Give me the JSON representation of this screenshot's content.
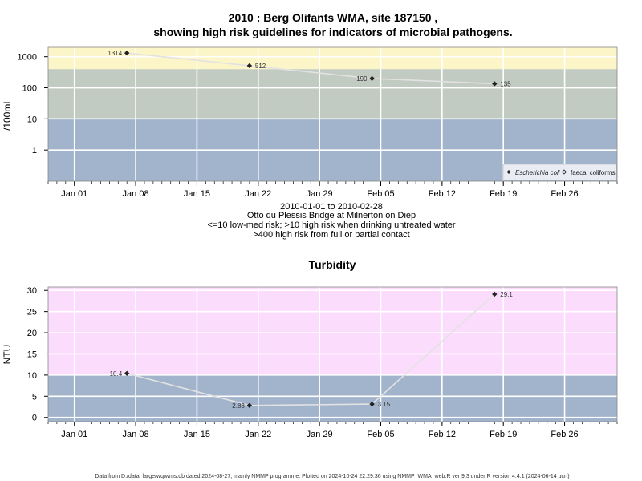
{
  "chart_data": [
    {
      "type": "line",
      "title_line1": "2010 : Berg Olifants WMA, site 187150 ,",
      "title_line2": "showing high risk guidelines for indicators of microbial pathogens.",
      "ylabel": "/100mL",
      "yscale": "log",
      "ylim": [
        0.1,
        2000
      ],
      "yticks": [
        1,
        10,
        100,
        1000
      ],
      "ytick_labels": [
        "1",
        "10",
        "100",
        "1000"
      ],
      "xlim": [
        "2009-12-29",
        "2010-03-04"
      ],
      "xticks": [
        "2010-01-01",
        "2010-01-08",
        "2010-01-15",
        "2010-01-22",
        "2010-01-29",
        "2010-02-05",
        "2010-02-12",
        "2010-02-19",
        "2010-02-26"
      ],
      "xtick_labels": [
        "Jan 01",
        "Jan 08",
        "Jan 15",
        "Jan 22",
        "Jan 29",
        "Feb 05",
        "Feb 12",
        "Feb 19",
        "Feb 26"
      ],
      "bands": [
        {
          "from": 0.1,
          "to": 10,
          "color": "#a2b3cc"
        },
        {
          "from": 10,
          "to": 400,
          "color": "#c2cbc1"
        },
        {
          "from": 400,
          "to": 2000,
          "color": "#fcf5c8"
        }
      ],
      "series": [
        {
          "name": "Escherichia coli",
          "marker": "filled-diamond",
          "points": [
            {
              "x": "2010-01-07",
              "y": 1314,
              "label": "1314",
              "label_side": "left"
            },
            {
              "x": "2010-01-21",
              "y": 512,
              "label": "512",
              "label_side": "right"
            },
            {
              "x": "2010-02-04",
              "y": 199,
              "label": "199",
              "label_side": "left"
            },
            {
              "x": "2010-02-18",
              "y": 135,
              "label": "135",
              "label_side": "right"
            }
          ]
        }
      ],
      "legend": {
        "position": "bottom-right",
        "entries": [
          {
            "label": "Escherichia coli",
            "marker": "filled-diamond",
            "italic": true
          },
          {
            "label": "faecal coliforms",
            "marker": "open-diamond",
            "italic": false
          }
        ]
      },
      "info_lines": [
        "2010-01-01 to 2010-02-28",
        "Otto du Plessis Bridge at Milnerton on Diep",
        "<=10 low-med risk; >10 high risk when drinking untreated water",
        ">400 high risk from full or partial contact"
      ]
    },
    {
      "type": "line",
      "title": "Turbidity",
      "ylabel": "NTU",
      "yscale": "linear",
      "ylim": [
        -1,
        30.8
      ],
      "yticks": [
        0,
        5,
        10,
        15,
        20,
        25,
        30
      ],
      "ytick_labels": [
        "0",
        "5",
        "10",
        "15",
        "20",
        "25",
        "30"
      ],
      "xlim": [
        "2009-12-29",
        "2010-03-04"
      ],
      "xticks": [
        "2010-01-01",
        "2010-01-08",
        "2010-01-15",
        "2010-01-22",
        "2010-01-29",
        "2010-02-05",
        "2010-02-12",
        "2010-02-19",
        "2010-02-26"
      ],
      "xtick_labels": [
        "Jan 01",
        "Jan 08",
        "Jan 15",
        "Jan 22",
        "Jan 29",
        "Feb 05",
        "Feb 12",
        "Feb 19",
        "Feb 26"
      ],
      "bands": [
        {
          "from": -1,
          "to": 10,
          "color": "#a2b3cc"
        },
        {
          "from": 10,
          "to": 30.8,
          "color": "#fcdcfc"
        }
      ],
      "series": [
        {
          "name": "",
          "marker": "filled-diamond",
          "points": [
            {
              "x": "2010-01-07",
              "y": 10.4,
              "label": "10.4",
              "label_side": "left"
            },
            {
              "x": "2010-01-21",
              "y": 2.83,
              "label": "2.83",
              "label_side": "left"
            },
            {
              "x": "2010-02-04",
              "y": 3.15,
              "label": "3.15",
              "label_side": "right"
            },
            {
              "x": "2010-02-18",
              "y": 29.1,
              "label": "29.1",
              "label_side": "right"
            }
          ]
        }
      ]
    }
  ],
  "footer": "Data from D:/data_large/wq/wms.db dated 2024-08-27, mainly NMMP programme. Plotted on 2024-10-24 22:29:36 using NMMP_WMA_web.R ver 9.3 under R version 4.4.1 (2024-06-14 ucrt)"
}
